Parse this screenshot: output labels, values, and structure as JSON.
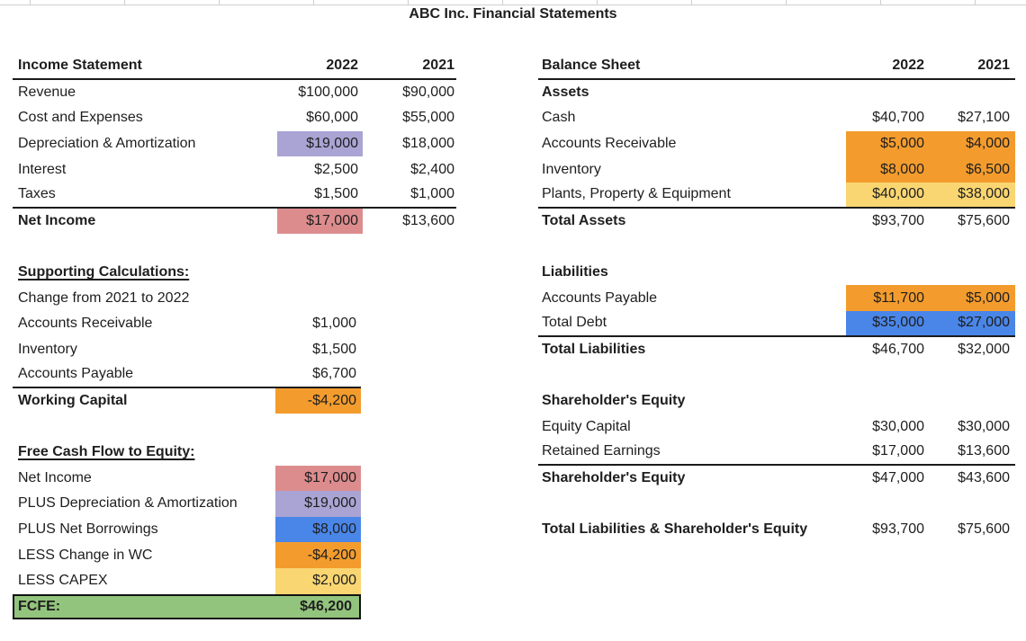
{
  "title": "ABC Inc. Financial Statements",
  "colors": {
    "orange": "#F39C2D",
    "yellow": "#F9D671",
    "blue": "#4A86E8",
    "green": "#93C47D",
    "red": "#DD8C8E",
    "purple": "#AAA4D4"
  },
  "income_statement": {
    "title": "Income Statement",
    "col_2022": "2022",
    "col_2021": "2021",
    "rows": [
      {
        "label": "Revenue",
        "v1": "$100,000",
        "v2": "$90,000"
      },
      {
        "label": "Cost and Expenses",
        "v1": "$60,000",
        "v2": "$55,000"
      },
      {
        "label": "Depreciation & Amortization",
        "v1": "$19,000",
        "v2": "$18,000",
        "hl1": "purple"
      },
      {
        "label": "Interest",
        "v1": "$2,500",
        "v2": "$2,400"
      },
      {
        "label": "Taxes",
        "v1": "$1,500",
        "v2": "$1,000",
        "bb": true
      },
      {
        "label": "Net Income",
        "v1": "$17,000",
        "v2": "$13,600",
        "bold": true,
        "hl1": "red"
      }
    ]
  },
  "supporting_calculations": {
    "heading": "Supporting Calculations:",
    "rows": [
      {
        "label": "Change from 2021 to 2022"
      },
      {
        "label": "Accounts Receivable",
        "v1": "$1,000"
      },
      {
        "label": "Inventory",
        "v1": "$1,500"
      },
      {
        "label": "Accounts Payable",
        "v1": "$6,700",
        "bb": true
      },
      {
        "label": "Working Capital",
        "v1": "-$4,200",
        "bold": true,
        "hl1": "orange"
      }
    ]
  },
  "fcfe": {
    "heading": "Free Cash Flow to Equity:",
    "rows": [
      {
        "label": "Net Income",
        "v1": "$17,000",
        "hl1": "red"
      },
      {
        "label": "PLUS Depreciation & Amortization",
        "v1": "$19,000",
        "hl1": "purple"
      },
      {
        "label": "PLUS Net Borrowings",
        "v1": "$8,000",
        "hl1": "blue"
      },
      {
        "label": "LESS Change in WC",
        "v1": "-$4,200",
        "hl1": "orange"
      },
      {
        "label": "LESS CAPEX",
        "v1": "$2,000",
        "hl1": "yellow"
      }
    ],
    "total": {
      "label": "FCFE:",
      "value": "$46,200"
    }
  },
  "balance_sheet": {
    "title": "Balance Sheet",
    "col_2022": "2022",
    "col_2021": "2021",
    "rows": [
      {
        "label": "Assets",
        "bold": true
      },
      {
        "label": "Cash",
        "v1": "$40,700",
        "v2": "$27,100"
      },
      {
        "label": "Accounts Receivable",
        "v1": "$5,000",
        "v2": "$4,000",
        "hl": "orange"
      },
      {
        "label": "Inventory",
        "v1": "$8,000",
        "v2": "$6,500",
        "hl": "orange"
      },
      {
        "label": "Plants, Property & Equipment",
        "v1": "$40,000",
        "v2": "$38,000",
        "hl": "yellow",
        "bb": true
      },
      {
        "label": "Total Assets",
        "v1": "$93,700",
        "v2": "$75,600",
        "bold": true
      },
      {
        "blank": true
      },
      {
        "label": "Liabilities",
        "bold": true
      },
      {
        "label": "Accounts Payable",
        "v1": "$11,700",
        "v2": "$5,000",
        "hl": "orange"
      },
      {
        "label": "Total Debt",
        "v1": "$35,000",
        "v2": "$27,000",
        "hl": "blue",
        "bb": true
      },
      {
        "label": "Total Liabilities",
        "v1": "$46,700",
        "v2": "$32,000",
        "bold": true
      },
      {
        "blank": true
      },
      {
        "label": "Shareholder's Equity",
        "bold": true
      },
      {
        "label": "Equity Capital",
        "v1": "$30,000",
        "v2": "$30,000"
      },
      {
        "label": "Retained Earnings",
        "v1": "$17,000",
        "v2": "$13,600",
        "bb": true
      },
      {
        "label": "Shareholder's Equity",
        "v1": "$47,000",
        "v2": "$43,600",
        "bold": true
      },
      {
        "blank": true
      },
      {
        "label": "Total Liabilities & Shareholder's Equity",
        "v1": "$93,700",
        "v2": "$75,600",
        "bold": true
      }
    ]
  }
}
